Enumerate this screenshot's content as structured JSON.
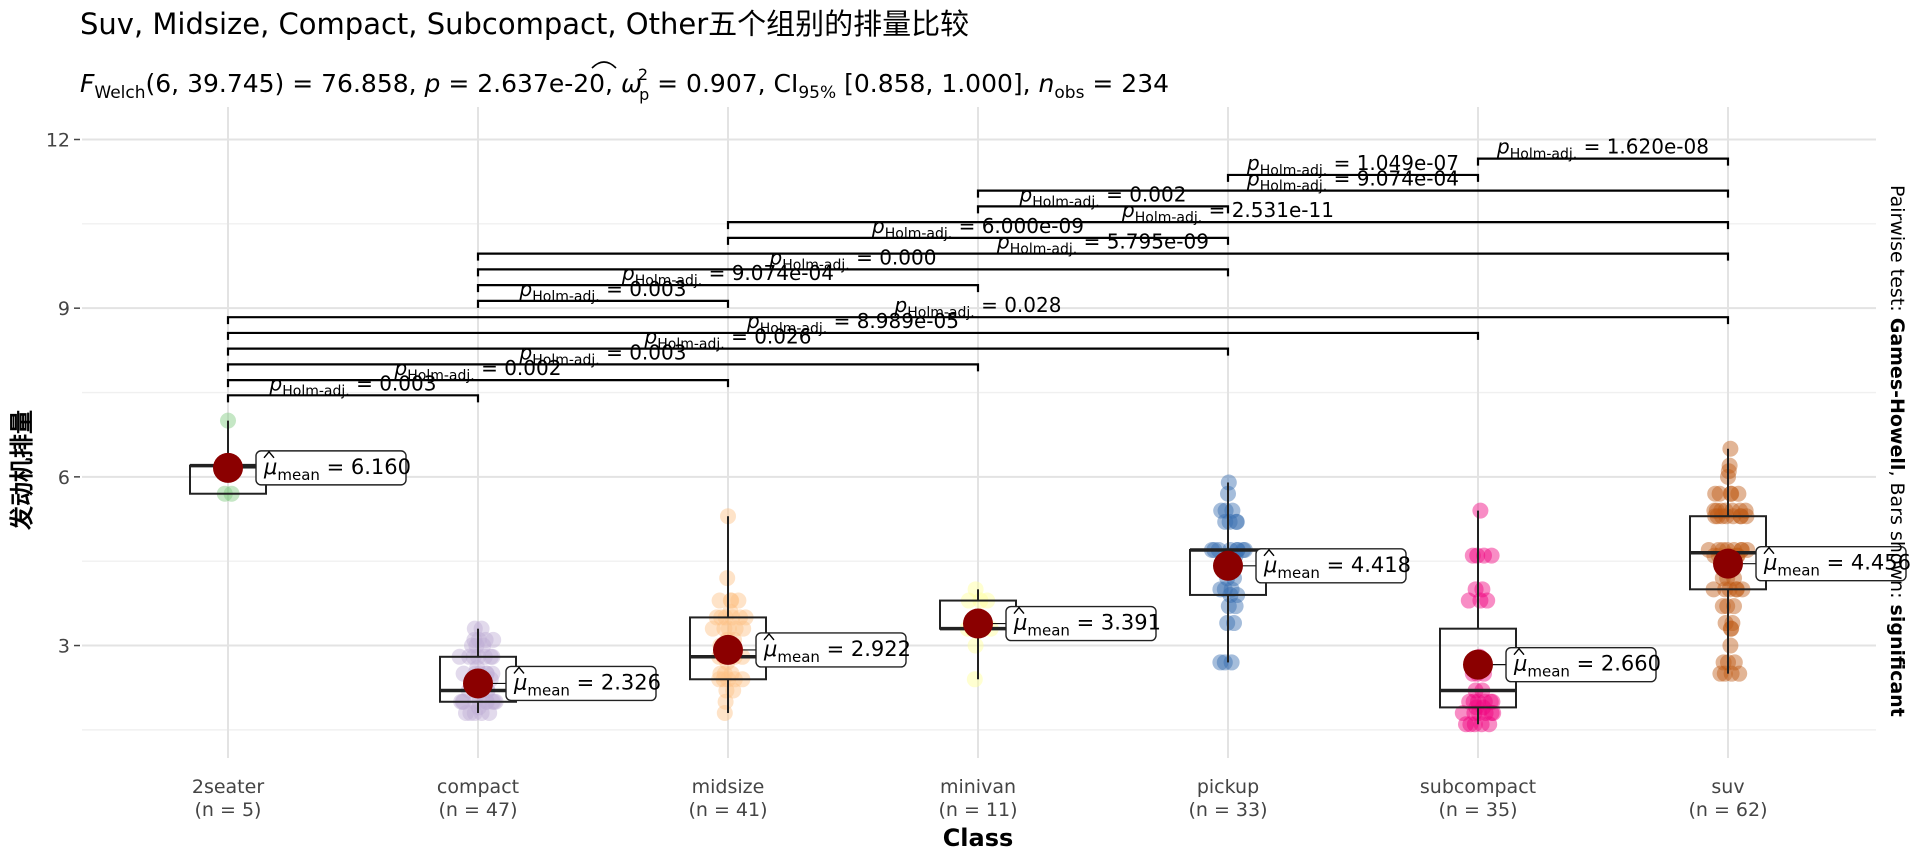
{
  "chart_data": {
    "type": "box-violin-scatter",
    "title": "Suv, Midsize, Compact, Subcompact, Other五个组别的排量比较",
    "subtitle": {
      "stat_name": "F",
      "stat_sub": "Welch",
      "stat_args": "(6, 39.745)",
      "stat_value": " = 76.858, ",
      "p_label": "p",
      "p_value": " = 2.637e-20, ",
      "effect_label": "ω",
      "effect_sup": "2",
      "effect_sub": "p",
      "effect_value": " = 0.907, CI",
      "ci_sub": "95%",
      "ci_value": " [0.858, 1.000], ",
      "n_label": "n",
      "n_sub": "obs",
      "n_value": " = 234"
    },
    "xlabel": "Class",
    "ylabel": "发动机排量",
    "ylim": [
      1.0,
      12.4
    ],
    "yticks": [
      "3",
      "6",
      "9",
      "12"
    ],
    "grid": true,
    "caption": {
      "prefix": "Pairwise test: ",
      "test": "Games-Howell",
      "middle": ", Bars shown: ",
      "shown": "significant"
    },
    "mean_label_prefix": "μ",
    "mean_label_sub": "mean",
    "p_label_prefix": "p",
    "p_label_sub": "Holm-adj.",
    "groups": [
      {
        "name": "2seater",
        "n_label": "(n = 5)",
        "color": "#7fc97f",
        "mean": 6.16,
        "mean_label": " = 6.160",
        "q1": 5.7,
        "median": 6.2,
        "q3": 6.2,
        "wmin": 5.7,
        "wmax": 7.0,
        "points": [
          5.7,
          5.7,
          6.2,
          6.2,
          7.0
        ]
      },
      {
        "name": "compact",
        "n_label": "(n = 47)",
        "color": "#beaed4",
        "mean": 2.326,
        "mean_label": " = 2.326",
        "q1": 2.0,
        "median": 2.2,
        "q3": 2.8,
        "wmin": 1.8,
        "wmax": 3.3,
        "points": [
          1.8,
          1.8,
          1.8,
          1.8,
          1.8,
          1.9,
          2.0,
          2.0,
          2.0,
          2.0,
          2.0,
          2.0,
          2.0,
          2.0,
          2.0,
          2.0,
          2.2,
          2.2,
          2.2,
          2.2,
          2.4,
          2.4,
          2.4,
          2.4,
          2.5,
          2.5,
          2.5,
          2.5,
          2.5,
          2.5,
          2.6,
          2.8,
          2.8,
          2.8,
          2.8,
          2.8,
          2.8,
          2.8,
          3.0,
          3.0,
          3.0,
          3.1,
          3.1,
          3.1,
          3.1,
          3.3,
          3.3
        ]
      },
      {
        "name": "midsize",
        "n_label": "(n = 41)",
        "color": "#fdc086",
        "mean": 2.922,
        "mean_label": " = 2.922",
        "q1": 2.4,
        "median": 2.8,
        "q3": 3.5,
        "wmin": 1.8,
        "wmax": 5.3,
        "points": [
          1.8,
          2.0,
          2.2,
          2.2,
          2.4,
          2.4,
          2.4,
          2.4,
          2.4,
          2.5,
          2.5,
          2.5,
          2.7,
          2.8,
          2.8,
          2.8,
          2.8,
          2.8,
          3.0,
          3.0,
          3.0,
          3.1,
          3.1,
          3.3,
          3.3,
          3.3,
          3.3,
          3.3,
          3.5,
          3.5,
          3.5,
          3.5,
          3.5,
          3.5,
          3.6,
          3.8,
          3.8,
          3.8,
          3.8,
          4.2,
          5.3
        ]
      },
      {
        "name": "minivan",
        "n_label": "(n = 11)",
        "color": "#ffff99",
        "mean": 3.391,
        "mean_label": " = 3.391",
        "q1": 3.3,
        "median": 3.3,
        "q3": 3.8,
        "wmin": 2.4,
        "wmax": 4.0,
        "points": [
          2.4,
          3.0,
          3.3,
          3.3,
          3.3,
          3.3,
          3.3,
          3.8,
          3.8,
          3.8,
          4.0
        ]
      },
      {
        "name": "pickup",
        "n_label": "(n = 33)",
        "color": "#386cb0",
        "mean": 4.418,
        "mean_label": " = 4.418",
        "q1": 3.9,
        "median": 4.7,
        "q3": 4.7,
        "wmin": 2.7,
        "wmax": 5.9,
        "points": [
          2.7,
          2.7,
          2.7,
          3.4,
          3.4,
          3.7,
          3.7,
          3.9,
          3.9,
          4.0,
          4.0,
          4.0,
          4.2,
          4.2,
          4.6,
          4.6,
          4.7,
          4.7,
          4.7,
          4.7,
          4.7,
          4.7,
          4.7,
          4.7,
          5.2,
          5.2,
          5.2,
          5.2,
          5.4,
          5.4,
          5.4,
          5.7,
          5.9
        ]
      },
      {
        "name": "subcompact",
        "n_label": "(n = 35)",
        "color": "#f0027f",
        "mean": 2.66,
        "mean_label": " = 2.660",
        "q1": 1.9,
        "median": 2.2,
        "q3": 3.3,
        "wmin": 1.6,
        "wmax": 5.4,
        "points": [
          1.6,
          1.6,
          1.6,
          1.6,
          1.6,
          1.8,
          1.8,
          1.8,
          1.8,
          1.8,
          1.8,
          1.9,
          1.9,
          2.0,
          2.0,
          2.0,
          2.0,
          2.0,
          2.0,
          2.2,
          2.2,
          2.5,
          2.5,
          2.5,
          2.8,
          3.8,
          3.8,
          3.8,
          4.0,
          4.0,
          4.6,
          4.6,
          4.6,
          4.6,
          5.4
        ]
      },
      {
        "name": "suv",
        "n_label": "(n = 62)",
        "color": "#bf5b17",
        "mean": 4.456,
        "mean_label": " = 4.456",
        "q1": 4.0,
        "median": 4.65,
        "q3": 5.3,
        "wmin": 2.5,
        "wmax": 6.5,
        "points": [
          2.5,
          2.5,
          2.5,
          2.5,
          2.7,
          2.7,
          2.7,
          3.0,
          3.3,
          3.3,
          3.4,
          3.4,
          3.7,
          3.7,
          3.7,
          4.0,
          4.0,
          4.0,
          4.0,
          4.0,
          4.0,
          4.2,
          4.2,
          4.2,
          4.4,
          4.6,
          4.6,
          4.6,
          4.6,
          4.6,
          4.7,
          4.7,
          4.7,
          4.7,
          4.7,
          4.7,
          4.7,
          4.7,
          5.3,
          5.3,
          5.3,
          5.3,
          5.3,
          5.3,
          5.3,
          5.3,
          5.4,
          5.4,
          5.4,
          5.4,
          5.4,
          5.4,
          5.4,
          5.7,
          5.7,
          5.7,
          5.7,
          5.7,
          6.0,
          6.1,
          6.2,
          6.5
        ]
      }
    ],
    "comparisons": [
      {
        "g1": 0,
        "g2": 1,
        "y": 7.45,
        "label": " = 0.003"
      },
      {
        "g1": 0,
        "g2": 2,
        "y": 7.72,
        "label": " = 0.002"
      },
      {
        "g1": 0,
        "g2": 3,
        "y": 8.0,
        "label": " = 0.003"
      },
      {
        "g1": 0,
        "g2": 4,
        "y": 8.28,
        "label": " = 0.026"
      },
      {
        "g1": 0,
        "g2": 5,
        "y": 8.56,
        "label": " = 8.989e-05"
      },
      {
        "g1": 0,
        "g2": 6,
        "y": 8.84,
        "label": " = 0.028"
      },
      {
        "g1": 1,
        "g2": 2,
        "y": 9.13,
        "label": " = 0.003"
      },
      {
        "g1": 1,
        "g2": 3,
        "y": 9.41,
        "label": " = 9.074e-04"
      },
      {
        "g1": 1,
        "g2": 4,
        "y": 9.69,
        "label": " = 0.000"
      },
      {
        "g1": 1,
        "g2": 6,
        "y": 9.97,
        "label": " = 5.795e-09"
      },
      {
        "g1": 2,
        "g2": 4,
        "y": 10.25,
        "label": " = 6.000e-09"
      },
      {
        "g1": 2,
        "g2": 6,
        "y": 10.53,
        "label": " = 2.531e-11"
      },
      {
        "g1": 3,
        "g2": 4,
        "y": 10.81,
        "label": " = 0.002"
      },
      {
        "g1": 3,
        "g2": 6,
        "y": 11.09,
        "label": " = 9.074e-04"
      },
      {
        "g1": 4,
        "g2": 5,
        "y": 11.37,
        "label": " = 1.049e-07"
      },
      {
        "g1": 5,
        "g2": 6,
        "y": 11.66,
        "label": " = 1.620e-08"
      }
    ]
  }
}
